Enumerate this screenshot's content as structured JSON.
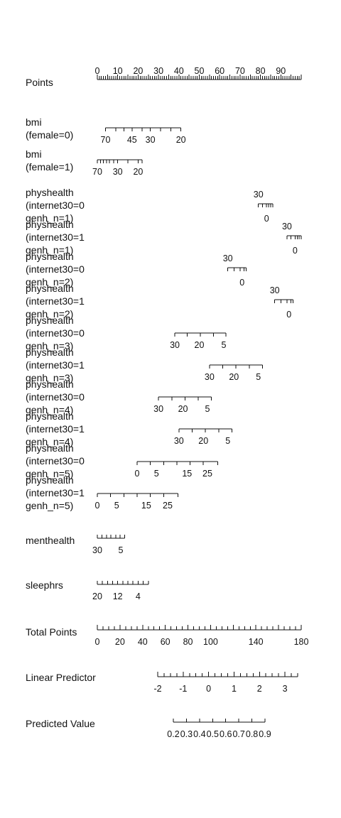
{
  "chart_data": {
    "type": "nomogram",
    "variables": [
      {
        "id": "points",
        "label": [
          "Points"
        ],
        "min": 0,
        "max": 100,
        "tick_step": 1,
        "major_every": 5,
        "labels": [
          0,
          10,
          20,
          30,
          40,
          50,
          60,
          70,
          80,
          90
        ],
        "labels_above": true
      },
      {
        "id": "bmi-female-0",
        "label": [
          "bmi",
          "(female=0)"
        ],
        "min": 4,
        "max": 41,
        "tick_values": [
          4,
          9,
          13,
          17,
          22,
          26,
          31,
          36,
          41
        ],
        "labels": [
          {
            "text": "70",
            "at": 4
          },
          {
            "text": "45",
            "at": 17
          },
          {
            "text": "30",
            "at": 26
          },
          {
            "text": "20",
            "at": 41
          }
        ]
      },
      {
        "id": "bmi-female-1",
        "label": [
          "bmi",
          "(female=1)"
        ],
        "min": 0,
        "max": 22,
        "tick_values": [
          0,
          1.5,
          3,
          4.5,
          6,
          8,
          10,
          15,
          20,
          22
        ],
        "labels": [
          {
            "text": "70",
            "at": 0
          },
          {
            "text": "30",
            "at": 10
          },
          {
            "text": "20",
            "at": 20
          }
        ]
      },
      {
        "id": "physhealth-i0-g1",
        "label": [
          "physhealth",
          "(internet30=0",
          "genh_n=1)"
        ],
        "min": 79,
        "max": 86,
        "tick_values": [
          79,
          81,
          83,
          84,
          85,
          86
        ],
        "labels": [
          {
            "text": "30",
            "at": 79,
            "position": "above"
          },
          {
            "text": "0",
            "at": 83,
            "position": "below"
          }
        ]
      },
      {
        "id": "physhealth-i1-g1",
        "label": [
          "physhealth",
          "(internet30=1",
          "genh_n=1)"
        ],
        "min": 93,
        "max": 100,
        "tick_values": [
          93,
          95,
          97,
          98,
          99,
          100
        ],
        "labels": [
          {
            "text": "30",
            "at": 93,
            "position": "above"
          },
          {
            "text": "0",
            "at": 97,
            "position": "below"
          }
        ]
      },
      {
        "id": "physhealth-i0-g2",
        "label": [
          "physhealth",
          "(internet30=0",
          "genh_n=2)"
        ],
        "min": 64,
        "max": 73,
        "tick_values": [
          64,
          67,
          70,
          72,
          73
        ],
        "labels": [
          {
            "text": "30",
            "at": 64,
            "position": "above"
          },
          {
            "text": "0",
            "at": 71,
            "position": "below"
          }
        ]
      },
      {
        "id": "physhealth-i1-g2",
        "label": [
          "physhealth",
          "(internet30=1",
          "genh_n=2)"
        ],
        "min": 87,
        "max": 96,
        "tick_values": [
          87,
          90,
          93,
          95,
          96
        ],
        "labels": [
          {
            "text": "30",
            "at": 87,
            "position": "above"
          },
          {
            "text": "0",
            "at": 94,
            "position": "below"
          }
        ]
      },
      {
        "id": "physhealth-i0-g3",
        "label": [
          "physhealth",
          "(internet30=0",
          "genh_n=3)"
        ],
        "min": 38,
        "max": 63,
        "tick_values": [
          38,
          44,
          50.5,
          57,
          63
        ],
        "labels": [
          {
            "text": "30",
            "at": 38
          },
          {
            "text": "20",
            "at": 50
          },
          {
            "text": "5",
            "at": 62
          }
        ]
      },
      {
        "id": "physhealth-i1-g3",
        "label": [
          "physhealth",
          "(internet30=1",
          "genh_n=3)"
        ],
        "min": 55,
        "max": 81,
        "tick_values": [
          55,
          61.5,
          68,
          74.5,
          81
        ],
        "labels": [
          {
            "text": "30",
            "at": 55
          },
          {
            "text": "20",
            "at": 67
          },
          {
            "text": "5",
            "at": 79
          }
        ]
      },
      {
        "id": "physhealth-i0-g4",
        "label": [
          "physhealth",
          "(internet30=0",
          "genh_n=4)"
        ],
        "min": 30,
        "max": 56,
        "tick_values": [
          30,
          36.5,
          43,
          49.5,
          56
        ],
        "labels": [
          {
            "text": "30",
            "at": 30
          },
          {
            "text": "20",
            "at": 42
          },
          {
            "text": "5",
            "at": 54
          }
        ]
      },
      {
        "id": "physhealth-i1-g4",
        "label": [
          "physhealth",
          "(internet30=1",
          "genh_n=4)"
        ],
        "min": 40,
        "max": 66,
        "tick_values": [
          40,
          46.5,
          53,
          59.5,
          66
        ],
        "labels": [
          {
            "text": "30",
            "at": 40
          },
          {
            "text": "20",
            "at": 52
          },
          {
            "text": "5",
            "at": 64
          }
        ]
      },
      {
        "id": "physhealth-i0-g5",
        "label": [
          "physhealth",
          "(internet30=0",
          "genh_n=5)"
        ],
        "min": 19.5,
        "max": 59,
        "tick_values": [
          19.5,
          26,
          32.5,
          39,
          45.5,
          52,
          59
        ],
        "labels": [
          {
            "text": "0",
            "at": 19.5
          },
          {
            "text": "5",
            "at": 29
          },
          {
            "text": "15",
            "at": 44
          },
          {
            "text": "25",
            "at": 54
          }
        ]
      },
      {
        "id": "physhealth-i1-g5",
        "label": [
          "physhealth",
          "(internet30=1",
          "genh_n=5)"
        ],
        "min": 0,
        "max": 39.5,
        "tick_values": [
          0,
          6.5,
          13,
          19.5,
          26,
          32.5,
          39.5
        ],
        "labels": [
          {
            "text": "0",
            "at": 0
          },
          {
            "text": "5",
            "at": 9.5
          },
          {
            "text": "15",
            "at": 24
          },
          {
            "text": "25",
            "at": 34.5
          }
        ]
      },
      {
        "id": "menthealth",
        "label": [
          "menthealth"
        ],
        "min": 0,
        "max": 13.5,
        "tick_values": [
          0,
          2.2,
          4.5,
          6.7,
          9,
          11.2,
          13.5
        ],
        "labels": [
          {
            "text": "30",
            "at": 0
          },
          {
            "text": "5",
            "at": 11.5
          }
        ]
      },
      {
        "id": "sleephrs",
        "label": [
          "sleephrs"
        ],
        "min": 0,
        "max": 25,
        "tick_values": [
          0,
          2.5,
          5,
          7.5,
          10,
          12.5,
          15,
          17.5,
          20,
          22.5,
          25
        ],
        "labels": [
          {
            "text": "20",
            "at": 0
          },
          {
            "text": "12",
            "at": 10
          },
          {
            "text": "4",
            "at": 20
          }
        ]
      },
      {
        "id": "total-points",
        "label": [
          "Total Points"
        ],
        "min": 0,
        "max": 180,
        "tick_step": 5,
        "major_every": 4,
        "labels": [
          {
            "text": "0",
            "at": 0
          },
          {
            "text": "20",
            "at": 20
          },
          {
            "text": "40",
            "at": 40
          },
          {
            "text": "60",
            "at": 60
          },
          {
            "text": "80",
            "at": 80
          },
          {
            "text": "100",
            "at": 100
          },
          {
            "text": "140",
            "at": 140
          },
          {
            "text": "180",
            "at": 180
          }
        ]
      },
      {
        "id": "linear-predictor",
        "label": [
          "Linear Predictor"
        ],
        "min": -2,
        "max": 3.5,
        "tick_step": 0.25,
        "major_every": 4,
        "labels": [
          {
            "text": "-2",
            "at": -2
          },
          {
            "text": "-1",
            "at": -1
          },
          {
            "text": "0",
            "at": 0
          },
          {
            "text": "1",
            "at": 1
          },
          {
            "text": "2",
            "at": 2
          },
          {
            "text": "3",
            "at": 3
          }
        ]
      },
      {
        "id": "predicted-value",
        "label": [
          "Predicted Value"
        ],
        "min": 0.2,
        "max": 0.9,
        "tick_values": [
          0.2,
          0.3,
          0.4,
          0.5,
          0.6,
          0.7,
          0.8,
          0.9
        ],
        "labels": [
          {
            "text": "0.2",
            "at": 0.2
          },
          {
            "text": "0.3",
            "at": 0.3
          },
          {
            "text": "0.4",
            "at": 0.4
          },
          {
            "text": "0.5",
            "at": 0.5
          },
          {
            "text": "0.6",
            "at": 0.6
          },
          {
            "text": "0.7",
            "at": 0.7
          },
          {
            "text": "0.8",
            "at": 0.8
          },
          {
            "text": "0.9",
            "at": 0.9
          }
        ]
      }
    ]
  }
}
